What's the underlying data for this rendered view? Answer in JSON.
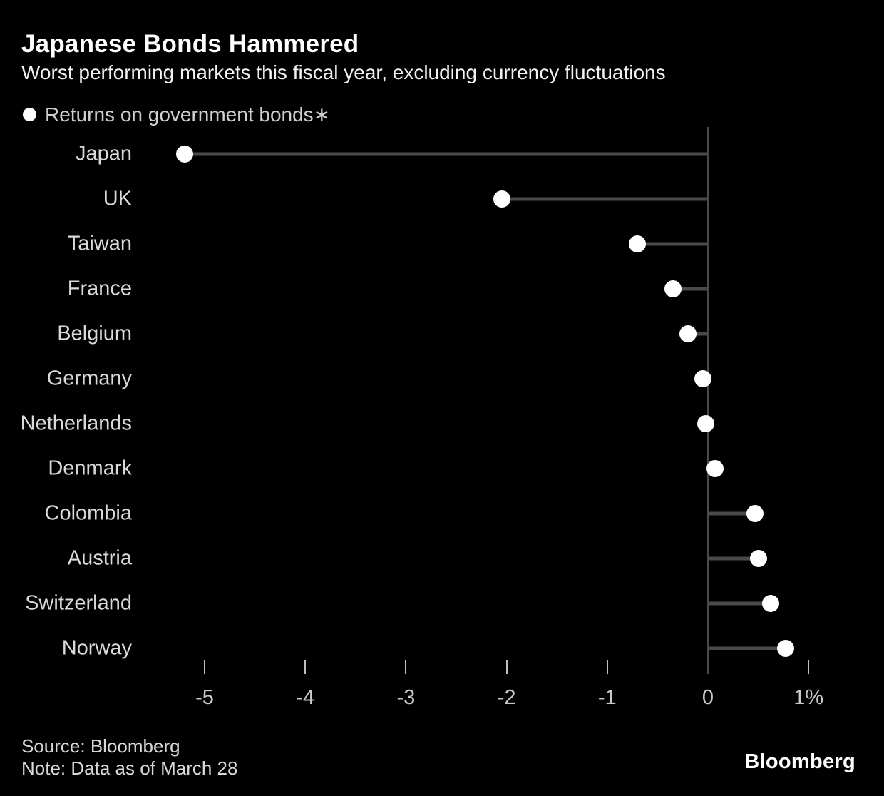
{
  "header": {
    "title": "Japanese Bonds Hammered",
    "subtitle": "Worst performing markets this fiscal year, excluding currency fluctuations"
  },
  "legend": {
    "label": "Returns on government bonds∗"
  },
  "chart_data": {
    "type": "scatter",
    "variant": "horizontal-lollipop",
    "title": "Japanese Bonds Hammered",
    "subtitle": "Worst performing markets this fiscal year, excluding currency fluctuations",
    "series_name": "Returns on government bonds∗",
    "categories": [
      "Japan",
      "UK",
      "Taiwan",
      "France",
      "Belgium",
      "Germany",
      "Netherlands",
      "Denmark",
      "Colombia",
      "Austria",
      "Switzerland",
      "Norway"
    ],
    "values": [
      -5.2,
      -2.05,
      -0.7,
      -0.35,
      -0.2,
      -0.05,
      -0.02,
      0.07,
      0.47,
      0.5,
      0.62,
      0.77
    ],
    "unit": "%",
    "xlim": [
      -5.5,
      1.6
    ],
    "tick_values": [
      -5,
      -4,
      -3,
      -2,
      -1,
      0,
      1
    ],
    "tick_labels": [
      "-5",
      "-4",
      "-3",
      "-2",
      "-1",
      "0",
      "1%"
    ],
    "grid": false,
    "legend_position": "top-left",
    "baseline": 0
  },
  "colors": {
    "background": "#000000",
    "dot": "#ffffff",
    "stem": "#4a4a4a",
    "axis": "#4a4a4a",
    "tick": "#c0c0c0",
    "category_label": "#d9d9d9",
    "tick_label": "#c9c9c9",
    "title": "#ffffff"
  },
  "footer": {
    "source": "Source: Bloomberg",
    "note": "Note: Data as of March 28",
    "brand": "Bloomberg"
  }
}
